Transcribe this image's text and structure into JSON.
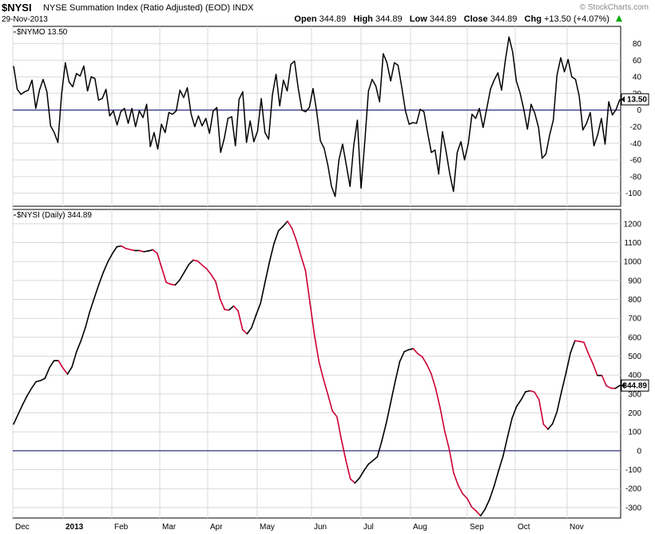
{
  "header": {
    "symbol": "$NYSI",
    "description": "NYSE Summation Index (Ratio Adjusted) (EOD)",
    "exchange": "INDX",
    "date": "29-Nov-2013",
    "watermark": "© StockCharts.com",
    "open_label": "Open",
    "open_value": "344.89",
    "high_label": "High",
    "high_value": "344.89",
    "low_label": "Low",
    "low_value": "344.89",
    "close_label": "Close",
    "close_value": "344.89",
    "chg_label": "Chg",
    "chg_value": "+13.50 (+4.07%)",
    "chg_icon": "up-triangle-icon"
  },
  "colors": {
    "up": "#000000",
    "down": "#cc0033",
    "zero_line": "#000066",
    "grid": "#d8d8d8",
    "icon": "#00aa00"
  },
  "chart_data": [
    {
      "type": "line",
      "title": "$NYMO",
      "last_value_label": "13.50",
      "ylim": [
        -110,
        95
      ],
      "yticks": [
        80,
        60,
        40,
        20,
        0,
        -20,
        -40,
        -60,
        -80,
        -100
      ],
      "zero_line": 0,
      "grid": true,
      "series": [
        {
          "values": [
            53,
            25,
            19,
            22,
            24,
            36,
            2,
            24,
            37,
            22,
            -19,
            -27,
            -39,
            20,
            57,
            34,
            28,
            44,
            41,
            53,
            23,
            40,
            38,
            12,
            14,
            25,
            -7,
            -1,
            -18,
            -2,
            2,
            -16,
            2,
            -20,
            -1,
            -9,
            7,
            -44,
            -27,
            -47,
            -17,
            -27,
            -3,
            -5,
            -1,
            24,
            15,
            27,
            -4,
            -20,
            -7,
            -19,
            -10,
            -28,
            -1,
            3,
            -51,
            -34,
            -10,
            -8,
            -43,
            13,
            22,
            -39,
            -13,
            -38,
            -25,
            14,
            -27,
            -35,
            18,
            43,
            5,
            36,
            23,
            55,
            59,
            26,
            0,
            -2,
            3,
            26,
            -2,
            -37,
            -46,
            -66,
            -92,
            -104,
            -60,
            -41,
            -66,
            -92,
            -43,
            -12,
            -94,
            -38,
            23,
            37,
            29,
            10,
            68,
            57,
            35,
            57,
            54,
            28,
            -1,
            -17,
            -15,
            -16,
            1,
            -2,
            -27,
            -51,
            -48,
            -77,
            -26,
            -50,
            -77,
            -98,
            -51,
            -38,
            -60,
            -40,
            -5,
            -10,
            2,
            -21,
            2,
            25,
            36,
            45,
            24,
            59,
            88,
            70,
            35,
            21,
            1,
            -23,
            7,
            -4,
            -21,
            -58,
            -53,
            -30,
            -12,
            42,
            63,
            46,
            61,
            40,
            37,
            17,
            -24,
            -16,
            -3,
            -43,
            -30,
            -10,
            -41,
            10,
            -6,
            1,
            13
          ]
        }
      ]
    },
    {
      "type": "line",
      "title": "$NYSI (Daily)",
      "last_value_label": "344.89",
      "ylim": [
        -330,
        1250
      ],
      "yticks": [
        1200,
        1100,
        1000,
        900,
        800,
        700,
        600,
        500,
        400,
        300,
        200,
        100,
        0,
        -100,
        -200,
        -300
      ],
      "zero_line": 0,
      "grid": true,
      "x_labels": [
        "Dec",
        "2013",
        "Feb",
        "Mar",
        "Apr",
        "May",
        "Jun",
        "Jul",
        "Aug",
        "Sep",
        "Oct",
        "Nov"
      ],
      "series": [
        {
          "values": [
            141,
            192,
            243,
            290,
            330,
            365,
            371,
            383,
            439,
            476,
            476,
            437,
            405,
            443,
            522,
            581,
            652,
            738,
            809,
            880,
            944,
            999,
            1042,
            1078,
            1082,
            1069,
            1063,
            1058,
            1058,
            1052,
            1056,
            1062,
            1043,
            966,
            890,
            880,
            876,
            903,
            943,
            984,
            1008,
            1002,
            981,
            961,
            931,
            894,
            801,
            746,
            744,
            765,
            739,
            640,
            618,
            651,
            718,
            780,
            891,
            1000,
            1096,
            1163,
            1186,
            1213,
            1175,
            1110,
            1030,
            952,
            782,
            610,
            471,
            379,
            296,
            210,
            180,
            59,
            -51,
            -149,
            -170,
            -145,
            -106,
            -71,
            -52,
            -32,
            52,
            147,
            258,
            369,
            472,
            524,
            534,
            540,
            513,
            497,
            457,
            407,
            328,
            225,
            104,
            10,
            -118,
            -182,
            -227,
            -252,
            -297,
            -318,
            -344,
            -308,
            -256,
            -187,
            -105,
            -28,
            74,
            172,
            234,
            269,
            312,
            317,
            310,
            270,
            140,
            114,
            142,
            206,
            312,
            410,
            517,
            582,
            578,
            573,
            513,
            460,
            398,
            398,
            343,
            331,
            330,
            345
          ]
        }
      ]
    }
  ]
}
